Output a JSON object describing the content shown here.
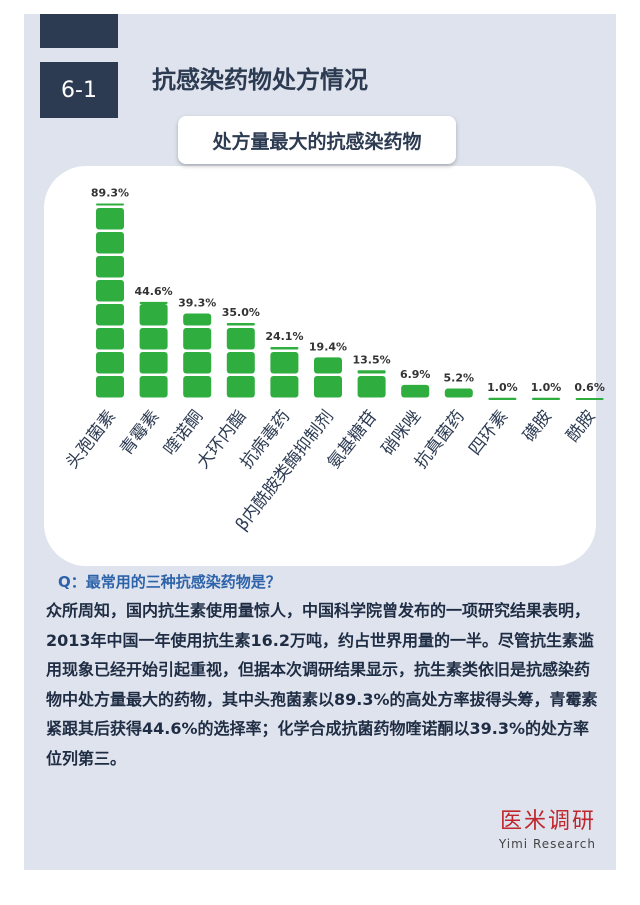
{
  "section": {
    "number": "6-1",
    "title": "抗感染药物处方情况"
  },
  "chart_data": {
    "type": "bar",
    "title": "处方量最大的抗感染药物",
    "categories": [
      "头孢菌素",
      "青霉素",
      "喹诺酮",
      "大环内酯",
      "抗病毒药",
      "β内酰胺类酶抑制剂",
      "氨基糖苷",
      "硝咪唑",
      "抗真菌药",
      "四环素",
      "磺胺",
      "酰胺"
    ],
    "values": [
      89.3,
      44.6,
      39.3,
      35.0,
      24.1,
      19.4,
      13.5,
      6.9,
      5.2,
      1.0,
      1.0,
      0.6
    ],
    "value_labels": [
      "89.3%",
      "44.6%",
      "39.3%",
      "35.0%",
      "24.1%",
      "19.4%",
      "13.5%",
      "6.9%",
      "5.2%",
      "1.0%",
      "1.0%",
      "0.6%"
    ],
    "ylim": [
      0,
      100
    ],
    "bar_color": "#2fae3f",
    "grid": false
  },
  "qa": {
    "question": "Q：最常用的三种抗感染药物是？",
    "answer": "众所周知，国内抗生素使用量惊人，中国科学院曾发布的一项研究结果表明，2013年中国一年使用抗生素16.2万吨，约占世界用量的一半。尽管抗生素滥用现象已经开始引起重视，但据本次调研结果显示，抗生素类依旧是抗感染药物中处方量最大的药物，其中头孢菌素以89.3%的高处方率拔得头筹，青霉素紧跟其后获得44.6%的选择率；化学合成抗菌药物喹诺酮以39.3%的处方率位列第三。"
  },
  "logo": {
    "cn": "医米调研",
    "en": "Yimi Research"
  }
}
